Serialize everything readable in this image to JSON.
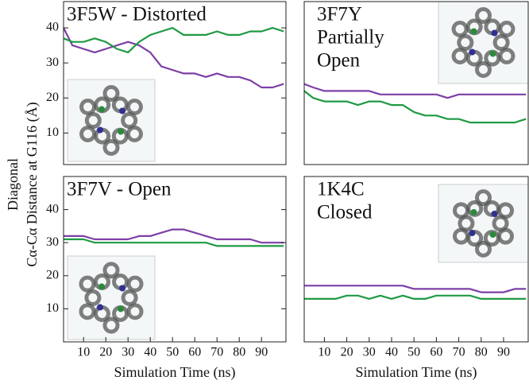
{
  "ylabel_lines": [
    "Diagonal",
    "Cα-Cα Distance at G116 (Å)"
  ],
  "chart_data": [
    {
      "type": "line",
      "title": "3F5W - Distorted",
      "x": [
        1,
        5,
        10,
        15,
        20,
        25,
        30,
        35,
        40,
        45,
        50,
        55,
        60,
        65,
        70,
        75,
        80,
        85,
        90,
        95,
        100
      ],
      "series": [
        {
          "color": "#7d3fa6",
          "values": [
            40,
            35,
            34,
            33,
            34,
            35,
            36,
            35,
            33,
            29,
            28,
            27,
            27,
            26,
            27,
            26,
            26,
            25,
            23,
            23,
            24
          ]
        },
        {
          "color": "#1f9a44",
          "values": [
            37,
            36,
            36,
            37,
            36,
            34,
            33,
            36,
            38,
            39,
            40,
            38,
            38,
            38,
            39,
            38,
            38,
            39,
            39,
            40,
            39
          ]
        }
      ],
      "xlim": [
        1,
        101
      ],
      "ylim": [
        1,
        47.5
      ],
      "yticks": [
        10,
        20,
        30,
        40
      ]
    },
    {
      "type": "line",
      "title": [
        "3F7Y",
        "Partially",
        "Open"
      ],
      "x": [
        1,
        5,
        10,
        15,
        20,
        25,
        30,
        35,
        40,
        45,
        50,
        55,
        60,
        65,
        70,
        75,
        80,
        85,
        90,
        95,
        100
      ],
      "series": [
        {
          "color": "#7d3fa6",
          "values": [
            24,
            23,
            22,
            22,
            22,
            22,
            22,
            21,
            21,
            21,
            21,
            21,
            21,
            20,
            21,
            21,
            21,
            21,
            21,
            21,
            21
          ]
        },
        {
          "color": "#1f9a44",
          "values": [
            22,
            20,
            19,
            19,
            19,
            18,
            19,
            19,
            18,
            18,
            16,
            15,
            15,
            14,
            14,
            13,
            13,
            13,
            13,
            13,
            14
          ]
        }
      ],
      "xlim": [
        1,
        101
      ],
      "ylim": [
        1,
        47.5
      ],
      "yticks": []
    },
    {
      "type": "line",
      "title": "3F7V - Open",
      "x": [
        1,
        5,
        10,
        15,
        20,
        25,
        30,
        35,
        40,
        45,
        50,
        55,
        60,
        65,
        70,
        75,
        80,
        85,
        90,
        95,
        100
      ],
      "series": [
        {
          "color": "#7d3fa6",
          "values": [
            32,
            32,
            32,
            31,
            31,
            31,
            31,
            32,
            32,
            33,
            34,
            34,
            33,
            32,
            31,
            31,
            31,
            31,
            30,
            30,
            30
          ]
        },
        {
          "color": "#1f9a44",
          "values": [
            31,
            31,
            31,
            30,
            30,
            30,
            30,
            30,
            30,
            30,
            30,
            30,
            30,
            30,
            29,
            29,
            29,
            29,
            29,
            29,
            29
          ]
        }
      ],
      "xlim": [
        1,
        101
      ],
      "ylim": [
        0,
        50
      ],
      "yticks": [
        10,
        20,
        30,
        40
      ],
      "xticks": [
        10,
        20,
        30,
        40,
        50,
        60,
        70,
        80,
        90
      ],
      "xlabel": "Simulation Time (ns)"
    },
    {
      "type": "line",
      "title": [
        "1K4C",
        "Closed"
      ],
      "x": [
        1,
        5,
        10,
        15,
        20,
        25,
        30,
        35,
        40,
        45,
        50,
        55,
        60,
        65,
        70,
        75,
        80,
        85,
        90,
        95,
        100
      ],
      "series": [
        {
          "color": "#7d3fa6",
          "values": [
            17,
            17,
            17,
            17,
            17,
            17,
            17,
            17,
            17,
            17,
            16,
            16,
            16,
            16,
            16,
            16,
            15,
            15,
            15,
            16,
            16
          ]
        },
        {
          "color": "#1f9a44",
          "values": [
            13,
            13,
            13,
            13,
            14,
            14,
            13,
            14,
            13,
            14,
            13,
            13,
            14,
            14,
            14,
            14,
            13,
            13,
            13,
            13,
            13
          ]
        }
      ],
      "xlim": [
        1,
        101
      ],
      "ylim": [
        0,
        50
      ],
      "yticks": [],
      "xticks": [
        10,
        20,
        30,
        40,
        50,
        60,
        70,
        80,
        90
      ],
      "xlabel": "Simulation Time (ns)"
    }
  ]
}
